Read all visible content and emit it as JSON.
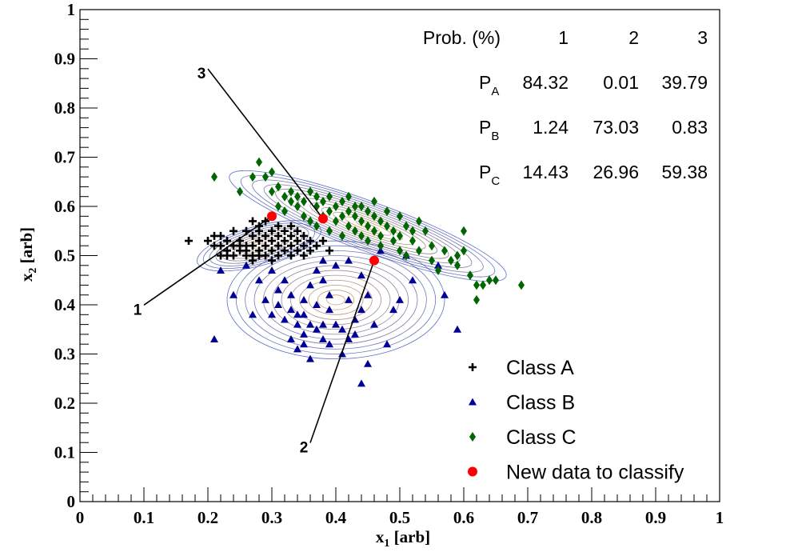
{
  "chart_data": {
    "type": "scatter",
    "xlabel": {
      "main": "x",
      "sub": "1",
      "unit": " [arb]"
    },
    "ylabel": {
      "main": "x",
      "sub": "2",
      "unit": " [arb]"
    },
    "xlim": [
      0,
      1
    ],
    "ylim": [
      0,
      1
    ],
    "x_ticks": [
      "0",
      "0.1",
      "0.2",
      "0.3",
      "0.4",
      "0.5",
      "0.6",
      "0.7",
      "0.8",
      "0.9",
      "1"
    ],
    "y_ticks": [
      "0",
      "0.1",
      "0.2",
      "0.3",
      "0.4",
      "0.5",
      "0.6",
      "0.7",
      "0.8",
      "0.9",
      "1"
    ],
    "grid": false,
    "legend_position": "bottom-right",
    "legend": [
      {
        "label": "Class A",
        "marker": "cross",
        "color": "#000000"
      },
      {
        "label": "Class B",
        "marker": "triangle",
        "color": "#000099"
      },
      {
        "label": "Class C",
        "marker": "diamond",
        "color": "#006600"
      },
      {
        "label": "New data to classify",
        "marker": "circle",
        "color": "#ff0000"
      }
    ],
    "series": [
      {
        "name": "Class A",
        "marker": "cross",
        "color": "#000000",
        "points": [
          [
            0.17,
            0.53
          ],
          [
            0.2,
            0.53
          ],
          [
            0.21,
            0.54
          ],
          [
            0.21,
            0.52
          ],
          [
            0.22,
            0.54
          ],
          [
            0.22,
            0.52
          ],
          [
            0.22,
            0.5
          ],
          [
            0.23,
            0.53
          ],
          [
            0.23,
            0.51
          ],
          [
            0.23,
            0.5
          ],
          [
            0.24,
            0.55
          ],
          [
            0.24,
            0.52
          ],
          [
            0.24,
            0.5
          ],
          [
            0.25,
            0.53
          ],
          [
            0.25,
            0.51
          ],
          [
            0.25,
            0.52
          ],
          [
            0.26,
            0.55
          ],
          [
            0.26,
            0.52
          ],
          [
            0.26,
            0.5
          ],
          [
            0.26,
            0.51
          ],
          [
            0.27,
            0.54
          ],
          [
            0.27,
            0.52
          ],
          [
            0.27,
            0.5
          ],
          [
            0.27,
            0.49
          ],
          [
            0.27,
            0.57
          ],
          [
            0.28,
            0.55
          ],
          [
            0.28,
            0.53
          ],
          [
            0.28,
            0.51
          ],
          [
            0.28,
            0.5
          ],
          [
            0.28,
            0.56
          ],
          [
            0.29,
            0.54
          ],
          [
            0.29,
            0.52
          ],
          [
            0.29,
            0.5
          ],
          [
            0.29,
            0.57
          ],
          [
            0.3,
            0.55
          ],
          [
            0.3,
            0.53
          ],
          [
            0.3,
            0.51
          ],
          [
            0.3,
            0.49
          ],
          [
            0.31,
            0.56
          ],
          [
            0.31,
            0.54
          ],
          [
            0.31,
            0.52
          ],
          [
            0.31,
            0.5
          ],
          [
            0.32,
            0.55
          ],
          [
            0.32,
            0.53
          ],
          [
            0.32,
            0.51
          ],
          [
            0.33,
            0.56
          ],
          [
            0.33,
            0.54
          ],
          [
            0.33,
            0.52
          ],
          [
            0.33,
            0.5
          ],
          [
            0.34,
            0.55
          ],
          [
            0.34,
            0.53
          ],
          [
            0.34,
            0.51
          ],
          [
            0.35,
            0.54
          ],
          [
            0.35,
            0.52
          ],
          [
            0.35,
            0.5
          ],
          [
            0.36,
            0.53
          ],
          [
            0.36,
            0.51
          ],
          [
            0.37,
            0.52
          ],
          [
            0.38,
            0.53
          ],
          [
            0.39,
            0.51
          ]
        ]
      },
      {
        "name": "Class B",
        "marker": "triangle",
        "color": "#000099",
        "points": [
          [
            0.21,
            0.33
          ],
          [
            0.22,
            0.47
          ],
          [
            0.24,
            0.42
          ],
          [
            0.26,
            0.48
          ],
          [
            0.27,
            0.38
          ],
          [
            0.28,
            0.45
          ],
          [
            0.29,
            0.41
          ],
          [
            0.3,
            0.47
          ],
          [
            0.3,
            0.38
          ],
          [
            0.31,
            0.43
          ],
          [
            0.31,
            0.4
          ],
          [
            0.32,
            0.37
          ],
          [
            0.32,
            0.45
          ],
          [
            0.33,
            0.39
          ],
          [
            0.33,
            0.33
          ],
          [
            0.33,
            0.42
          ],
          [
            0.34,
            0.36
          ],
          [
            0.34,
            0.31
          ],
          [
            0.34,
            0.38
          ],
          [
            0.35,
            0.41
          ],
          [
            0.35,
            0.32
          ],
          [
            0.35,
            0.34
          ],
          [
            0.35,
            0.38
          ],
          [
            0.36,
            0.44
          ],
          [
            0.36,
            0.36
          ],
          [
            0.36,
            0.29
          ],
          [
            0.37,
            0.47
          ],
          [
            0.37,
            0.35
          ],
          [
            0.37,
            0.4
          ],
          [
            0.38,
            0.33
          ],
          [
            0.38,
            0.45
          ],
          [
            0.38,
            0.36
          ],
          [
            0.39,
            0.42
          ],
          [
            0.39,
            0.39
          ],
          [
            0.39,
            0.32
          ],
          [
            0.4,
            0.48
          ],
          [
            0.4,
            0.36
          ],
          [
            0.41,
            0.35
          ],
          [
            0.41,
            0.3
          ],
          [
            0.42,
            0.49
          ],
          [
            0.42,
            0.41
          ],
          [
            0.43,
            0.37
          ],
          [
            0.43,
            0.34
          ],
          [
            0.44,
            0.24
          ],
          [
            0.44,
            0.46
          ],
          [
            0.44,
            0.39
          ],
          [
            0.45,
            0.28
          ],
          [
            0.45,
            0.42
          ],
          [
            0.46,
            0.36
          ],
          [
            0.47,
            0.51
          ],
          [
            0.48,
            0.32
          ],
          [
            0.49,
            0.39
          ],
          [
            0.5,
            0.41
          ],
          [
            0.51,
            0.5
          ],
          [
            0.52,
            0.45
          ],
          [
            0.56,
            0.48
          ],
          [
            0.57,
            0.42
          ],
          [
            0.59,
            0.35
          ],
          [
            0.38,
            0.49
          ],
          [
            0.42,
            0.33
          ]
        ]
      },
      {
        "name": "Class C",
        "marker": "diamond",
        "color": "#006600",
        "points": [
          [
            0.21,
            0.66
          ],
          [
            0.25,
            0.63
          ],
          [
            0.27,
            0.66
          ],
          [
            0.28,
            0.69
          ],
          [
            0.29,
            0.66
          ],
          [
            0.3,
            0.63
          ],
          [
            0.3,
            0.67
          ],
          [
            0.31,
            0.64
          ],
          [
            0.31,
            0.6
          ],
          [
            0.32,
            0.62
          ],
          [
            0.32,
            0.59
          ],
          [
            0.33,
            0.63
          ],
          [
            0.33,
            0.61
          ],
          [
            0.34,
            0.6
          ],
          [
            0.34,
            0.62
          ],
          [
            0.35,
            0.58
          ],
          [
            0.35,
            0.61
          ],
          [
            0.36,
            0.63
          ],
          [
            0.36,
            0.57
          ],
          [
            0.37,
            0.6
          ],
          [
            0.37,
            0.62
          ],
          [
            0.37,
            0.56
          ],
          [
            0.38,
            0.58
          ],
          [
            0.38,
            0.61
          ],
          [
            0.39,
            0.55
          ],
          [
            0.39,
            0.59
          ],
          [
            0.39,
            0.62
          ],
          [
            0.4,
            0.57
          ],
          [
            0.4,
            0.6
          ],
          [
            0.41,
            0.58
          ],
          [
            0.41,
            0.54
          ],
          [
            0.41,
            0.61
          ],
          [
            0.42,
            0.56
          ],
          [
            0.42,
            0.59
          ],
          [
            0.42,
            0.62
          ],
          [
            0.43,
            0.55
          ],
          [
            0.43,
            0.58
          ],
          [
            0.43,
            0.6
          ],
          [
            0.44,
            0.54
          ],
          [
            0.44,
            0.57
          ],
          [
            0.44,
            0.6
          ],
          [
            0.45,
            0.56
          ],
          [
            0.45,
            0.59
          ],
          [
            0.45,
            0.53
          ],
          [
            0.46,
            0.55
          ],
          [
            0.46,
            0.58
          ],
          [
            0.46,
            0.61
          ],
          [
            0.47,
            0.54
          ],
          [
            0.47,
            0.57
          ],
          [
            0.47,
            0.52
          ],
          [
            0.48,
            0.56
          ],
          [
            0.48,
            0.59
          ],
          [
            0.49,
            0.53
          ],
          [
            0.49,
            0.55
          ],
          [
            0.5,
            0.58
          ],
          [
            0.5,
            0.51
          ],
          [
            0.5,
            0.54
          ],
          [
            0.51,
            0.56
          ],
          [
            0.51,
            0.5
          ],
          [
            0.52,
            0.53
          ],
          [
            0.52,
            0.55
          ],
          [
            0.53,
            0.57
          ],
          [
            0.53,
            0.51
          ],
          [
            0.54,
            0.55
          ],
          [
            0.55,
            0.49
          ],
          [
            0.55,
            0.52
          ],
          [
            0.56,
            0.47
          ],
          [
            0.57,
            0.51
          ],
          [
            0.58,
            0.49
          ],
          [
            0.59,
            0.5
          ],
          [
            0.59,
            0.48
          ],
          [
            0.6,
            0.51
          ],
          [
            0.6,
            0.55
          ],
          [
            0.61,
            0.46
          ],
          [
            0.62,
            0.44
          ],
          [
            0.62,
            0.41
          ],
          [
            0.63,
            0.44
          ],
          [
            0.64,
            0.45
          ],
          [
            0.65,
            0.45
          ],
          [
            0.69,
            0.44
          ]
        ]
      },
      {
        "name": "New data to classify",
        "marker": "circle",
        "color": "#ff0000",
        "points": [
          [
            0.3,
            0.58
          ],
          [
            0.38,
            0.575
          ],
          [
            0.46,
            0.49
          ]
        ]
      }
    ],
    "annotations": [
      {
        "label": "1",
        "point": [
          0.3,
          0.58
        ],
        "text_at": [
          0.09,
          0.38
        ]
      },
      {
        "label": "2",
        "point": [
          0.46,
          0.49
        ],
        "text_at": [
          0.35,
          0.1
        ]
      },
      {
        "label": "3",
        "point": [
          0.38,
          0.575
        ],
        "text_at": [
          0.19,
          0.86
        ]
      }
    ],
    "density_contours": [
      {
        "class": "Class A",
        "center": [
          0.28,
          0.52
        ],
        "sx": 0.1,
        "sy": 0.04,
        "angle_deg": 15,
        "levels": 10
      },
      {
        "class": "Class B",
        "center": [
          0.4,
          0.41
        ],
        "sx": 0.17,
        "sy": 0.12,
        "angle_deg": 0,
        "levels": 12
      },
      {
        "class": "Class C",
        "center": [
          0.45,
          0.56
        ],
        "sx": 0.23,
        "sy": 0.05,
        "angle_deg": -20,
        "levels": 12
      }
    ],
    "prob_table": {
      "title": "Prob. (%)",
      "columns": [
        "1",
        "2",
        "3"
      ],
      "rows": [
        {
          "label": "P",
          "sub": "A",
          "values": [
            "84.32",
            "0.01",
            "39.79"
          ]
        },
        {
          "label": "P",
          "sub": "B",
          "values": [
            "1.24",
            "73.03",
            "0.83"
          ]
        },
        {
          "label": "P",
          "sub": "C",
          "values": [
            "14.43",
            "26.96",
            "59.38"
          ]
        }
      ]
    }
  }
}
